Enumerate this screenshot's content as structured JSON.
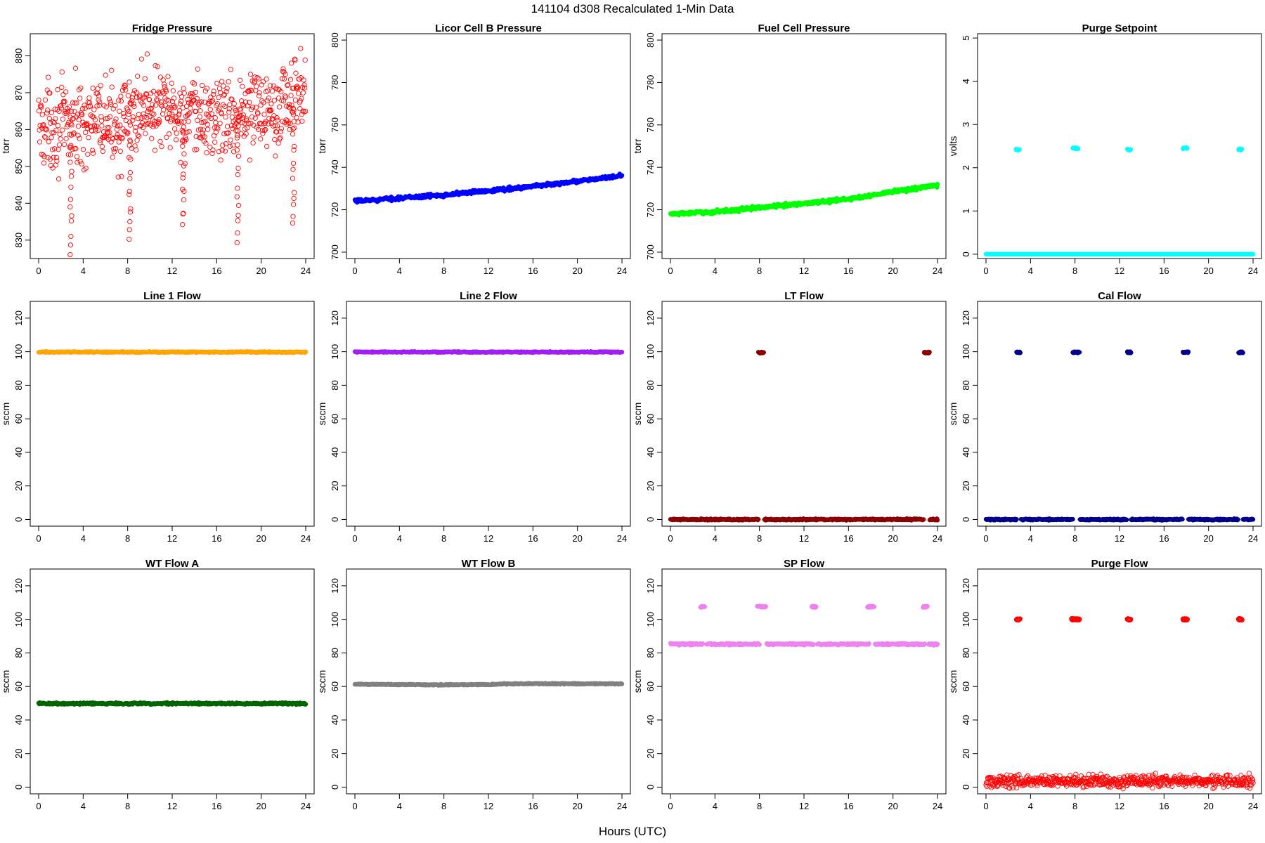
{
  "figure": {
    "title": "141104   d308   Recalculated 1-Min Data",
    "xlabel": "Hours (UTC)"
  },
  "chart_data": [
    {
      "type": "scatter",
      "title": "Fridge Pressure",
      "ylabel": "torr",
      "xlim": [
        0,
        24
      ],
      "ylim": [
        825,
        886
      ],
      "xticks": [
        0,
        4,
        8,
        12,
        16,
        20,
        24
      ],
      "yticks": [
        830,
        840,
        850,
        860,
        870,
        880
      ],
      "color": "#ff0000",
      "marker": "open-circle",
      "pattern": {
        "kind": "noise",
        "base": [
          [
            0,
            861
          ],
          [
            8,
            862
          ],
          [
            9.5,
            867
          ],
          [
            12,
            864
          ],
          [
            14,
            863
          ],
          [
            18,
            864
          ],
          [
            20,
            866
          ],
          [
            24,
            869
          ]
        ],
        "noise": 5.5,
        "dips": [
          [
            2.9,
            827
          ],
          [
            8.2,
            830
          ],
          [
            13.0,
            834
          ],
          [
            17.9,
            830
          ],
          [
            22.9,
            834
          ]
        ],
        "step": 0.0334
      }
    },
    {
      "type": "scatter",
      "title": "Licor Cell B Pressure",
      "ylabel": "torr",
      "xlim": [
        0,
        24
      ],
      "ylim": [
        697,
        803
      ],
      "xticks": [
        0,
        4,
        8,
        12,
        16,
        20,
        24
      ],
      "yticks": [
        700,
        720,
        740,
        760,
        780,
        800
      ],
      "color": "#0000ff",
      "marker": "filled-circle",
      "pattern": {
        "kind": "curve",
        "base": [
          [
            0,
            724
          ],
          [
            4,
            725.5
          ],
          [
            8,
            727
          ],
          [
            12,
            729
          ],
          [
            16,
            731
          ],
          [
            20,
            733.5
          ],
          [
            24,
            736
          ]
        ],
        "noise": 0.4,
        "step": 0.05
      }
    },
    {
      "type": "scatter",
      "title": "Fuel Cell Pressure",
      "ylabel": "torr",
      "xlim": [
        0,
        24
      ],
      "ylim": [
        697,
        803
      ],
      "xticks": [
        0,
        4,
        8,
        12,
        16,
        20,
        24
      ],
      "yticks": [
        700,
        720,
        740,
        760,
        780,
        800
      ],
      "color": "#00ff00",
      "marker": "filled-circle",
      "pattern": {
        "kind": "curve",
        "base": [
          [
            0,
            718
          ],
          [
            4,
            719
          ],
          [
            8,
            721
          ],
          [
            12,
            723
          ],
          [
            16,
            725
          ],
          [
            20,
            728.5
          ],
          [
            24,
            731.5
          ]
        ],
        "noise": 0.4,
        "step": 0.05
      }
    },
    {
      "type": "scatter",
      "title": "Purge Setpoint",
      "ylabel": "volts",
      "xlim": [
        0,
        24
      ],
      "ylim": [
        -0.1,
        5.1
      ],
      "xticks": [
        0,
        4,
        8,
        12,
        16,
        20,
        24
      ],
      "yticks": [
        0,
        1,
        2,
        3,
        4,
        5
      ],
      "color": "#00ffff",
      "marker": "filled-circle",
      "pattern": {
        "kind": "flat",
        "level": 0,
        "noise": 0,
        "step": 0.05,
        "bursts": [
          {
            "t": [
              2.7,
              3.0
            ],
            "y": 2.42
          },
          {
            "t": [
              7.8,
              8.3
            ],
            "y": 2.45
          },
          {
            "t": [
              12.7,
              13.0
            ],
            "y": 2.42
          },
          {
            "t": [
              17.7,
              18.1
            ],
            "y": 2.45
          },
          {
            "t": [
              22.7,
              23.0
            ],
            "y": 2.42
          }
        ]
      }
    },
    {
      "type": "scatter",
      "title": "Line 1 Flow",
      "ylabel": "sccm",
      "xlim": [
        0,
        24
      ],
      "ylim": [
        -4,
        130
      ],
      "xticks": [
        0,
        4,
        8,
        12,
        16,
        20,
        24
      ],
      "yticks": [
        0,
        20,
        40,
        60,
        80,
        100,
        120
      ],
      "color": "#ffa500",
      "marker": "filled-circle",
      "pattern": {
        "kind": "flat",
        "level": 99.8,
        "noise": 0.15,
        "step": 0.05
      }
    },
    {
      "type": "scatter",
      "title": "Line 2 Flow",
      "ylabel": "sccm",
      "xlim": [
        0,
        24
      ],
      "ylim": [
        -4,
        130
      ],
      "xticks": [
        0,
        4,
        8,
        12,
        16,
        20,
        24
      ],
      "yticks": [
        0,
        20,
        40,
        60,
        80,
        100,
        120
      ],
      "color": "#a020f0",
      "marker": "filled-circle",
      "pattern": {
        "kind": "flat",
        "level": 99.8,
        "noise": 0.15,
        "step": 0.05
      }
    },
    {
      "type": "scatter",
      "title": "LT Flow",
      "ylabel": "sccm",
      "xlim": [
        0,
        24
      ],
      "ylim": [
        -4,
        130
      ],
      "xticks": [
        0,
        4,
        8,
        12,
        16,
        20,
        24
      ],
      "yticks": [
        0,
        20,
        40,
        60,
        80,
        100,
        120
      ],
      "color": "#8b0000",
      "marker": "filled-circle",
      "pattern": {
        "kind": "flat",
        "level": 0,
        "noise": 0.2,
        "step": 0.05,
        "gaps": [
          [
            7.9,
            8.4
          ],
          [
            22.8,
            23.3
          ]
        ],
        "bursts": [
          {
            "t": [
              7.9,
              8.4
            ],
            "y": 99.5
          },
          {
            "t": [
              22.8,
              23.3
            ],
            "y": 99.5
          }
        ]
      }
    },
    {
      "type": "scatter",
      "title": "Cal Flow",
      "ylabel": "sccm",
      "xlim": [
        0,
        24
      ],
      "ylim": [
        -4,
        130
      ],
      "xticks": [
        0,
        4,
        8,
        12,
        16,
        20,
        24
      ],
      "yticks": [
        0,
        20,
        40,
        60,
        80,
        100,
        120
      ],
      "color": "#00008b",
      "marker": "filled-circle",
      "pattern": {
        "kind": "flat",
        "level": 0,
        "noise": 0.2,
        "step": 0.05,
        "gaps": [
          [
            2.75,
            3.1
          ],
          [
            7.8,
            8.4
          ],
          [
            12.7,
            13.05
          ],
          [
            17.7,
            18.2
          ],
          [
            22.7,
            23.1
          ]
        ],
        "bursts": [
          {
            "t": [
              2.75,
              3.1
            ],
            "y": 99.6
          },
          {
            "t": [
              7.8,
              8.4
            ],
            "y": 99.6
          },
          {
            "t": [
              12.7,
              13.05
            ],
            "y": 99.6
          },
          {
            "t": [
              17.7,
              18.2
            ],
            "y": 99.6
          },
          {
            "t": [
              22.7,
              23.1
            ],
            "y": 99.6
          }
        ]
      }
    },
    {
      "type": "scatter",
      "title": "WT Flow A",
      "ylabel": "sccm",
      "xlim": [
        0,
        24
      ],
      "ylim": [
        -4,
        130
      ],
      "xticks": [
        0,
        4,
        8,
        12,
        16,
        20,
        24
      ],
      "yticks": [
        0,
        20,
        40,
        60,
        80,
        100,
        120
      ],
      "color": "#006400",
      "marker": "filled-circle",
      "pattern": {
        "kind": "flat",
        "level": 49.8,
        "noise": 0.25,
        "step": 0.05
      }
    },
    {
      "type": "scatter",
      "title": "WT Flow B",
      "ylabel": "sccm",
      "xlim": [
        0,
        24
      ],
      "ylim": [
        -4,
        130
      ],
      "xticks": [
        0,
        4,
        8,
        12,
        16,
        20,
        24
      ],
      "yticks": [
        0,
        20,
        40,
        60,
        80,
        100,
        120
      ],
      "color": "#808080",
      "marker": "filled-circle",
      "pattern": {
        "kind": "curve",
        "base": [
          [
            0,
            61.3
          ],
          [
            8,
            61.0
          ],
          [
            12,
            61.1
          ],
          [
            14,
            61.6
          ],
          [
            24,
            61.6
          ]
        ],
        "noise": 0.15,
        "step": 0.05
      }
    },
    {
      "type": "scatter",
      "title": "SP Flow",
      "ylabel": "sccm",
      "xlim": [
        0,
        24
      ],
      "ylim": [
        -4,
        130
      ],
      "xticks": [
        0,
        4,
        8,
        12,
        16,
        20,
        24
      ],
      "yticks": [
        0,
        20,
        40,
        60,
        80,
        100,
        120
      ],
      "color": "#ee82ee",
      "marker": "filled-circle",
      "pattern": {
        "kind": "flat",
        "level": 85.2,
        "noise": 0.25,
        "step": 0.05,
        "gaps": [
          [
            2.9,
            3.2
          ],
          [
            8.0,
            8.6
          ],
          [
            12.9,
            13.2
          ],
          [
            17.9,
            18.4
          ],
          [
            22.9,
            23.2
          ]
        ],
        "bursts": [
          {
            "t": [
              2.7,
              3.1
            ],
            "y": 107.5
          },
          {
            "t": [
              7.8,
              8.6
            ],
            "y": 107.5
          },
          {
            "t": [
              12.7,
              13.1
            ],
            "y": 107.5
          },
          {
            "t": [
              17.7,
              18.3
            ],
            "y": 107.5
          },
          {
            "t": [
              22.7,
              23.1
            ],
            "y": 107.5
          }
        ]
      }
    },
    {
      "type": "scatter",
      "title": "Purge Flow",
      "ylabel": "sccm",
      "xlim": [
        0,
        24
      ],
      "ylim": [
        -4,
        130
      ],
      "xticks": [
        0,
        4,
        8,
        12,
        16,
        20,
        24
      ],
      "yticks": [
        0,
        20,
        40,
        60,
        80,
        100,
        120
      ],
      "color": "#ff0000",
      "marker": "open-circle",
      "pattern": {
        "kind": "flat",
        "level": 3.5,
        "noise": 1.8,
        "step": 0.04,
        "bursts": [
          {
            "t": [
              2.75,
              3.05
            ],
            "y": 100
          },
          {
            "t": [
              7.7,
              8.4
            ],
            "y": 100
          },
          {
            "t": [
              12.7,
              13.0
            ],
            "y": 100
          },
          {
            "t": [
              17.7,
              18.1
            ],
            "y": 100
          },
          {
            "t": [
              22.7,
              23.0
            ],
            "y": 100
          }
        ]
      }
    }
  ]
}
